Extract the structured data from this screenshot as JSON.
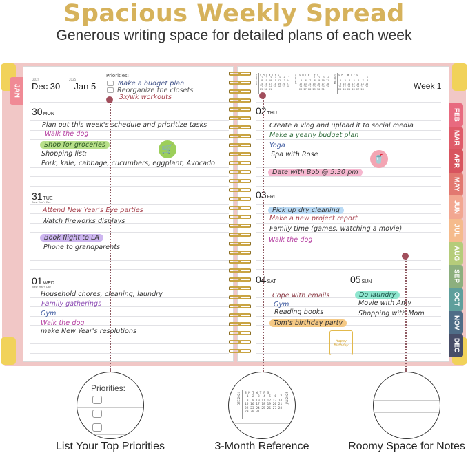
{
  "header": {
    "title": "Spacious Weekly Spread",
    "subtitle": "Generous writing space for detailed plans of each week"
  },
  "left_page": {
    "year_start": "2024",
    "year_end": "2025",
    "date_range": "Dec 30 — Jan 5",
    "priorities": {
      "label": "Priorities:",
      "items": [
        "Make a budget plan",
        "Reorganize the closets",
        "3x/wk workouts"
      ]
    },
    "days": [
      {
        "num": "30",
        "dow": "MON",
        "holiday": "",
        "items": [
          "Plan out this week's schedule and prioritize tasks",
          "Walk the dog",
          "Shop for groceries",
          "Shopping list:",
          "Pork, kale, cabbage, cucumbers, eggplant, Avocado"
        ]
      },
      {
        "num": "31",
        "dow": "TUE",
        "holiday": "New Year's Eve",
        "items": [
          "Attend New Year's Eve parties",
          "Watch fireworks displays",
          "Book flight to LA",
          "Phone to grandparents"
        ]
      },
      {
        "num": "01",
        "dow": "WED",
        "holiday": "New Year's Day",
        "items": [
          "Household chores, cleaning, laundry",
          "Family gatherings",
          "Gym",
          "Walk the dog",
          "make New Year's resolutions"
        ]
      }
    ]
  },
  "right_page": {
    "week_label": "Week 1",
    "mini_calendars": [
      {
        "month": "DEC 2024",
        "rows": [
          "S M T W T F S",
          " 1  2  3  4  5  6  7",
          " 8  9 10 11 12 13 14",
          "15 16 17 18 19 20 21",
          "22 23 24 25 26 27 28",
          "29 30 31"
        ]
      },
      {
        "month": "JAN 2025",
        "rows": [
          "S M T W T F S",
          "          1  2  3  4",
          " 5  6  7  8  9 10 11",
          "12 13 14 15 16 17 18",
          "19 20 21 22 23 24 25",
          "26 27 28 29 30 31"
        ]
      },
      {
        "month": "FEB 2025",
        "rows": [
          "S M T W T F S",
          "                   1",
          " 2  3  4  5  6  7  8",
          " 9 10 11 12 13 14 15",
          "16 17 18 19 20 21 22",
          "23 24 25 26 27 28"
        ]
      }
    ],
    "days": [
      {
        "num": "02",
        "dow": "THU",
        "items": [
          "Create a vlog and upload it to social media",
          "Make a yearly budget plan",
          "Yoga",
          "Spa with Rose",
          "Date with Bob @ 5:30 pm"
        ]
      },
      {
        "num": "03",
        "dow": "FRI",
        "items": [
          "Pick up dry cleaning",
          "Make a new project report",
          "Family time (games, watching a movie)",
          "Walk the dog"
        ]
      },
      {
        "num": "04",
        "dow": "SAT",
        "items": [
          "Cope with emails",
          "Gym",
          "Reading books",
          "Tom's birthday party"
        ]
      },
      {
        "num": "05",
        "dow": "SUN",
        "items": [
          "Do laundry",
          "Movie with Amy",
          "Shopping with Mom"
        ]
      }
    ],
    "sticker_text": "Happy Birthday"
  },
  "tabs": {
    "left": {
      "label": "JAN",
      "color": "#f08a95"
    },
    "right": [
      {
        "label": "FEB",
        "color": "#e86a7f"
      },
      {
        "label": "MAR",
        "color": "#df5b69"
      },
      {
        "label": "APR",
        "color": "#d8545e"
      },
      {
        "label": "MAY",
        "color": "#e27870"
      },
      {
        "label": "JUN",
        "color": "#f2a791"
      },
      {
        "label": "JUL",
        "color": "#f5bb8c"
      },
      {
        "label": "AUG",
        "color": "#b5cc7a"
      },
      {
        "label": "SEP",
        "color": "#8caf7e"
      },
      {
        "label": "OCT",
        "color": "#5f9f9c"
      },
      {
        "label": "NOV",
        "color": "#4f6d87"
      },
      {
        "label": "DEC",
        "color": "#474d68"
      }
    ]
  },
  "features": [
    {
      "caption": "List Your Top Priorities",
      "detail_label": "Priorities:"
    },
    {
      "caption": "3-Month Reference",
      "left_label": "DEC 2024",
      "right_label": "JAN 2025"
    },
    {
      "caption": "Roomy Space for Notes"
    }
  ],
  "colors": {
    "title_gold": "#d6b25b",
    "cover_pink": "#f1c7c6",
    "ring_gold": "#c9a443",
    "marker_dot": "#a14e5c"
  }
}
